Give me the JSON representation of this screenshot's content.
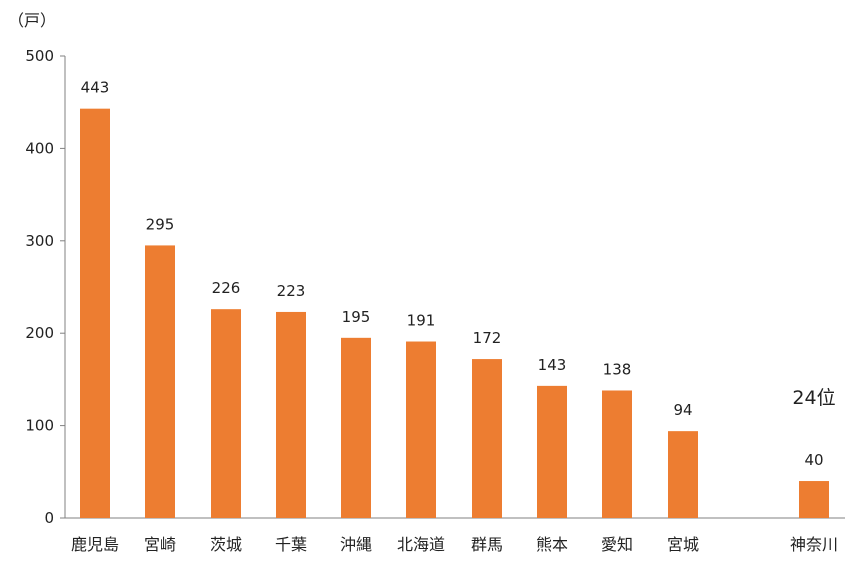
{
  "chart_data": {
    "type": "bar",
    "unit_label": "（戸）",
    "categories": [
      "鹿児島",
      "宮崎",
      "茨城",
      "千葉",
      "沖縄",
      "北海道",
      "群馬",
      "熊本",
      "愛知",
      "宮城",
      "神奈川"
    ],
    "values": [
      443,
      295,
      226,
      223,
      195,
      191,
      172,
      143,
      138,
      94,
      40
    ],
    "data_labels": [
      "443",
      "295",
      "226",
      "223",
      "195",
      "191",
      "172",
      "143",
      "138",
      "94",
      "40"
    ],
    "yticks": [
      0,
      100,
      200,
      300,
      400,
      500
    ],
    "ytick_labels": [
      "0",
      "100",
      "200",
      "300",
      "400",
      "500"
    ],
    "ylim": [
      0,
      500
    ],
    "annotation": "24位",
    "bar_color": "#ED7D31",
    "axis_color": "#808080",
    "grid": false,
    "legend": "none"
  }
}
